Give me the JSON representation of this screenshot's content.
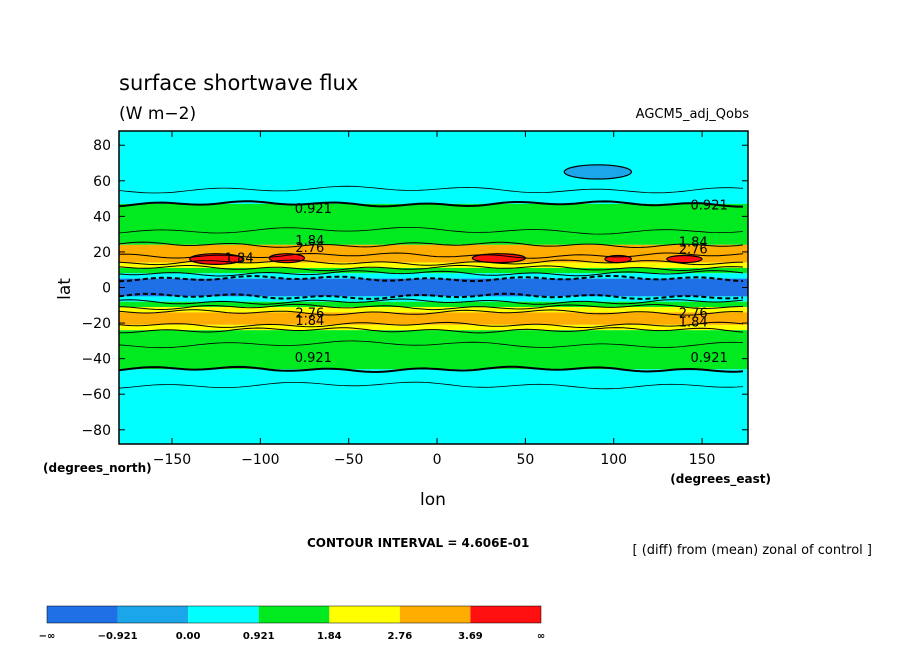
{
  "chart_data": {
    "type": "heatmap",
    "title": "surface shortwave flux",
    "units": "(W m−2)",
    "experiment": "AGCM5_adj_Qobs",
    "xlabel": "lon",
    "ylabel": "lat",
    "x_units_label": "(degrees_east)",
    "y_units_label": "(degrees_north)",
    "xlim": [
      -180,
      176
    ],
    "ylim": [
      -88,
      88
    ],
    "x_ticks": [
      -150,
      -100,
      -50,
      0,
      50,
      100,
      150
    ],
    "y_ticks": [
      -80,
      -60,
      -40,
      -20,
      0,
      20,
      40,
      60,
      80
    ],
    "x_tick_labels": [
      "−150",
      "−100",
      "−50",
      "0",
      "50",
      "100",
      "150"
    ],
    "y_tick_labels": [
      "−80",
      "−60",
      "−40",
      "−20",
      "0",
      "20",
      "40",
      "60",
      "80"
    ],
    "contour_interval_text": "CONTOUR INTERVAL = 4.606E-01",
    "note": "[ (diff) from (mean) zonal of control ]",
    "levels": [
      -0.921,
      0.0,
      0.921,
      1.84,
      2.76,
      3.69
    ],
    "colorbar_labels": [
      "−∞",
      "−0.921",
      "0.00",
      "0.921",
      "1.84",
      "2.76",
      "3.69",
      "∞"
    ],
    "colorbar_colors": [
      "#1f6fe6",
      "#1ca6ea",
      "#00ffff",
      "#00ea1f",
      "#ffff00",
      "#ffad00",
      "#ff0f0f"
    ],
    "zonal_bands": [
      {
        "lat_min": 47,
        "lat_max": 88,
        "level": "0.00–0.921"
      },
      {
        "lat_min": 24,
        "lat_max": 47,
        "level": "0.921–1.84"
      },
      {
        "lat_min": 18,
        "lat_max": 24,
        "level": "2.76–3.69"
      },
      {
        "lat_min": 14,
        "lat_max": 18,
        "level": "2.76–3.69"
      },
      {
        "lat_min": 11,
        "lat_max": 14,
        "level": "1.84–2.76"
      },
      {
        "lat_min": 8,
        "lat_max": 11,
        "level": "0.921–1.84"
      },
      {
        "lat_min": 5,
        "lat_max": 8,
        "level": "0.00–0.921"
      },
      {
        "lat_min": -5,
        "lat_max": 5,
        "level": "−∞–−0.921"
      },
      {
        "lat_min": -8,
        "lat_max": -5,
        "level": "0.00–0.921"
      },
      {
        "lat_min": -11,
        "lat_max": -8,
        "level": "0.921–1.84"
      },
      {
        "lat_min": -14,
        "lat_max": -11,
        "level": "1.84–2.76"
      },
      {
        "lat_min": -21,
        "lat_max": -14,
        "level": "2.76–3.69"
      },
      {
        "lat_min": -24,
        "lat_max": -21,
        "level": "1.84–2.76"
      },
      {
        "lat_min": -46,
        "lat_max": -24,
        "level": "0.921–1.84"
      },
      {
        "lat_min": -88,
        "lat_max": -46,
        "level": "0.00–0.921"
      }
    ],
    "blobs": [
      {
        "region": "N. Pacific/Asia",
        "lon_min": 72,
        "lon_max": 110,
        "lat_min": 61,
        "lat_max": 69,
        "level": "−0.921–0.00"
      },
      {
        "region": "N. tropics",
        "lon_min": -140,
        "lon_max": -110,
        "lat_min": 13,
        "lat_max": 19,
        "level": "3.69–∞"
      },
      {
        "region": "N. tropics",
        "lon_min": -95,
        "lon_max": -75,
        "lat_min": 14,
        "lat_max": 19,
        "level": "3.69–∞"
      },
      {
        "region": "N. tropics",
        "lon_min": 20,
        "lon_max": 50,
        "lat_min": 14,
        "lat_max": 19,
        "level": "3.69–∞"
      },
      {
        "region": "N. tropics",
        "lon_min": 95,
        "lon_max": 110,
        "lat_min": 14,
        "lat_max": 18,
        "level": "3.69–∞"
      },
      {
        "region": "N. tropics",
        "lon_min": 130,
        "lon_max": 150,
        "lat_min": 14,
        "lat_max": 18,
        "level": "3.69–∞"
      }
    ],
    "contour_labels": [
      {
        "text": "0.921",
        "lon": -70,
        "lat": 42
      },
      {
        "text": "0.921",
        "lon": 154,
        "lat": 44
      },
      {
        "text": "0.921",
        "lon": -70,
        "lat": -42
      },
      {
        "text": "0.921",
        "lon": 154,
        "lat": -42
      },
      {
        "text": "1.84",
        "lon": -72,
        "lat": 24
      },
      {
        "text": "2.76",
        "lon": -72,
        "lat": 20
      },
      {
        "text": "1.84",
        "lon": 145,
        "lat": 23
      },
      {
        "text": "2.76",
        "lon": 145,
        "lat": 19
      },
      {
        "text": "1.84",
        "lon": -112,
        "lat": 14
      },
      {
        "text": "2.76",
        "lon": -72,
        "lat": -17
      },
      {
        "text": "1.84",
        "lon": -72,
        "lat": -21
      },
      {
        "text": "2.76",
        "lon": 145,
        "lat": -17
      },
      {
        "text": "1.84",
        "lon": 145,
        "lat": -22
      }
    ]
  }
}
